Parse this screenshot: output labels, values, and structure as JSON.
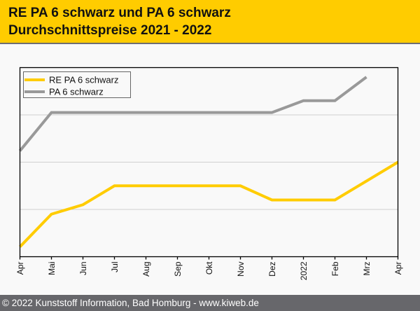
{
  "header": {
    "title_line1": "RE PA 6 schwarz und PA 6 schwarz",
    "title_line2": "Durchschnittspreise 2021 - 2022"
  },
  "footer": {
    "text": "© 2022 Kunststoff Information, Bad Homburg - www.kiweb.de"
  },
  "colors": {
    "header_bg": "#ffcc00",
    "series_re": "#ffcc00",
    "series_pa": "#999999",
    "footer_bg": "#67676b"
  },
  "chart_data": {
    "type": "line",
    "title": "RE PA 6 schwarz und PA 6 schwarz Durchschnittspreise 2021 - 2022",
    "xlabel": "",
    "ylabel": "",
    "categories": [
      "Apr",
      "Mai",
      "Jun",
      "Jul",
      "Aug",
      "Sep",
      "Okt",
      "Nov",
      "Dez",
      "2022",
      "Feb",
      "Mrz",
      "Apr"
    ],
    "ylim": [
      0,
      4
    ],
    "y_unit_note": "relative index (no y-axis labels shown)",
    "grid": true,
    "legend_position": "top-left",
    "series": [
      {
        "name": "RE PA 6 schwarz",
        "color": "#ffcc00",
        "values": [
          0.21,
          0.9,
          1.1,
          1.5,
          1.5,
          1.5,
          1.5,
          1.5,
          1.2,
          1.2,
          1.2,
          1.6,
          2.0
        ]
      },
      {
        "name": "PA 6 schwarz",
        "color": "#999999",
        "values": [
          2.24,
          3.05,
          3.05,
          3.05,
          3.05,
          3.05,
          3.05,
          3.05,
          3.05,
          3.3,
          3.3,
          3.8,
          null
        ]
      }
    ]
  }
}
